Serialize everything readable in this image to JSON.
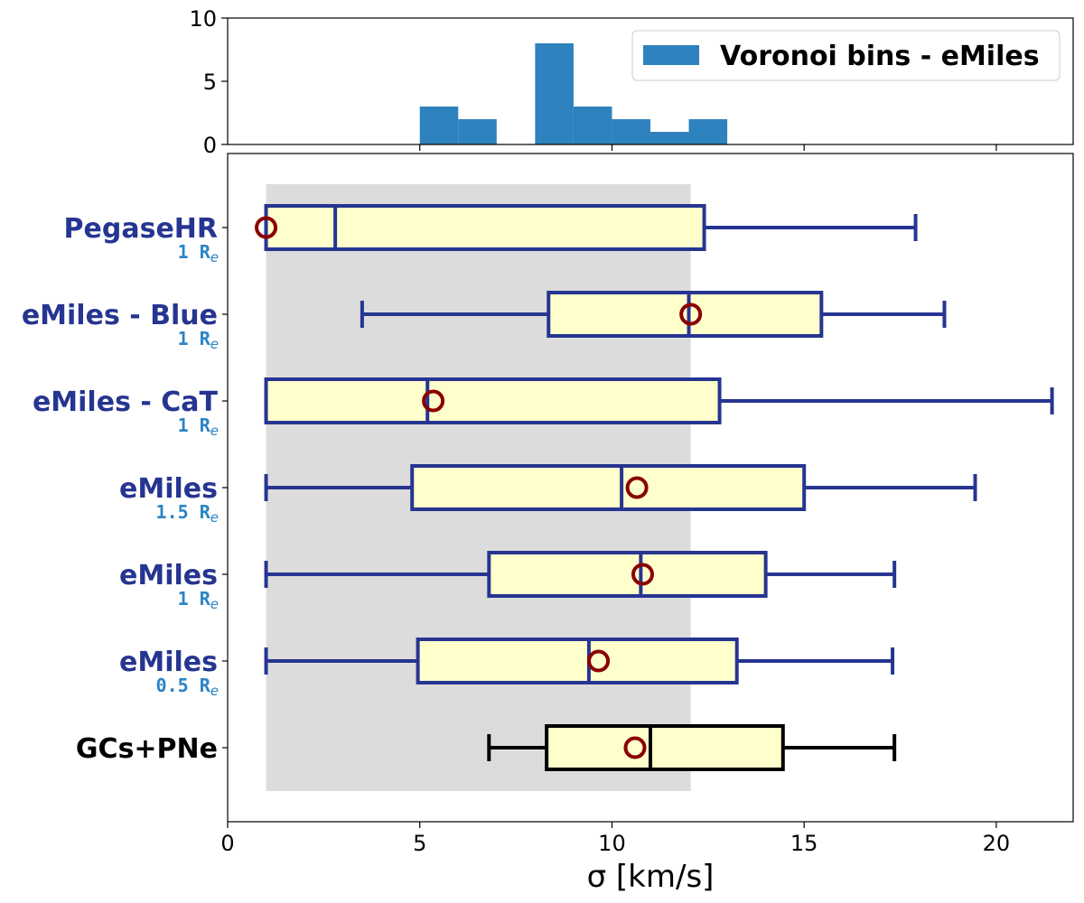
{
  "chart_data": [
    {
      "type": "histogram",
      "legend_label": "Voronoi bins - eMiles",
      "legend_position": "top-right",
      "bar_color": "#2e82bd",
      "bins": [
        {
          "x0": 5,
          "x1": 6,
          "count": 3
        },
        {
          "x0": 6,
          "x1": 7,
          "count": 2
        },
        {
          "x0": 7,
          "x1": 8,
          "count": 0
        },
        {
          "x0": 8,
          "x1": 9,
          "count": 8
        },
        {
          "x0": 9,
          "x1": 10,
          "count": 3
        },
        {
          "x0": 10,
          "x1": 11,
          "count": 2
        },
        {
          "x0": 11,
          "x1": 12,
          "count": 1
        },
        {
          "x0": 12,
          "x1": 13,
          "count": 2
        }
      ],
      "xlim": [
        0,
        22
      ],
      "ylim": [
        0,
        10
      ],
      "yticks": [
        0,
        5,
        10
      ],
      "xticks": [
        5,
        10,
        15,
        20
      ]
    },
    {
      "type": "boxplot",
      "orientation": "horizontal",
      "xlabel": "σ [km/s]",
      "xlim": [
        0,
        22
      ],
      "xticks": [
        0,
        5,
        10,
        15,
        20
      ],
      "shaded_range": [
        1,
        12.05
      ],
      "shaded_color": "#dcdcdc",
      "box_fill": "#ffffcc",
      "mean_marker_color": "#8b0000",
      "categories": [
        {
          "label": "PegaseHR",
          "sublabel": "1 R",
          "subscript": "e",
          "color": "#263591",
          "whisker_low": 1,
          "q1": 1,
          "median": 2.8,
          "q3": 12.4,
          "whisker_high": 17.9,
          "mean": 1
        },
        {
          "label": "eMiles - Blue",
          "sublabel": "1 R",
          "subscript": "e",
          "color": "#263591",
          "whisker_low": 3.5,
          "q1": 8.35,
          "median": 12,
          "q3": 15.45,
          "whisker_high": 18.65,
          "mean": 12.05
        },
        {
          "label": "eMiles - CaT",
          "sublabel": "1 R",
          "subscript": "e",
          "color": "#263591",
          "whisker_low": 1,
          "q1": 1,
          "median": 5.2,
          "q3": 12.8,
          "whisker_high": 21.45,
          "mean": 5.35
        },
        {
          "label": "eMiles",
          "sublabel": "1.5 R",
          "subscript": "e",
          "color": "#263591",
          "whisker_low": 1,
          "q1": 4.8,
          "median": 10.25,
          "q3": 15,
          "whisker_high": 19.45,
          "mean": 10.65
        },
        {
          "label": "eMiles",
          "sublabel": "1 R",
          "subscript": "e",
          "color": "#263591",
          "whisker_low": 1,
          "q1": 6.8,
          "median": 10.75,
          "q3": 14,
          "whisker_high": 17.35,
          "mean": 10.8
        },
        {
          "label": "eMiles",
          "sublabel": "0.5 R",
          "subscript": "e",
          "color": "#263591",
          "whisker_low": 1,
          "q1": 4.95,
          "median": 9.4,
          "q3": 13.25,
          "whisker_high": 17.3,
          "mean": 9.65
        },
        {
          "label": "GCs+PNe",
          "sublabel": "",
          "subscript": "",
          "color": "#000000",
          "whisker_low": 6.8,
          "q1": 8.3,
          "median": 11,
          "q3": 14.45,
          "whisker_high": 17.35,
          "mean": 10.6
        }
      ]
    }
  ]
}
